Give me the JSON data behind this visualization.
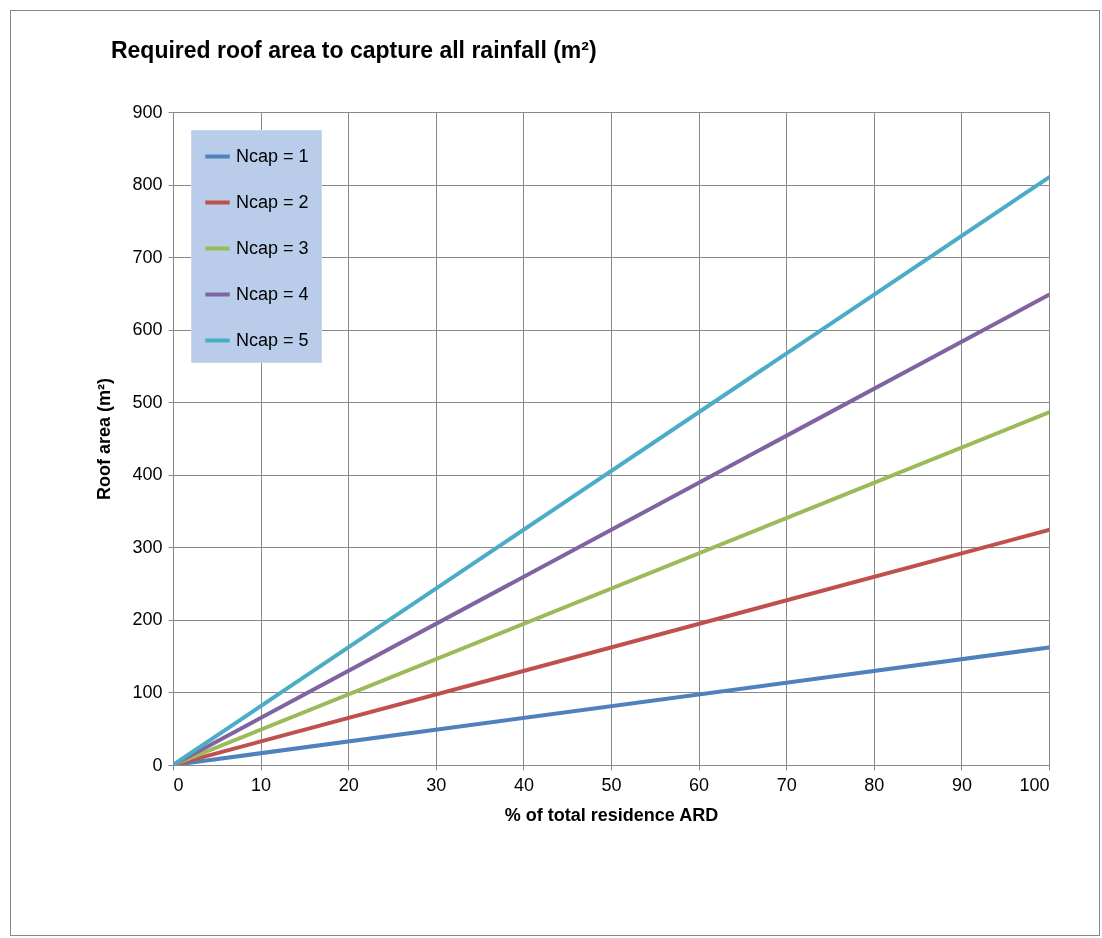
{
  "chart_data": {
    "type": "line",
    "title": "Required roof area to capture all rainfall (m²)",
    "xlabel": "% of total residence ARD",
    "ylabel": "Roof area (m²)",
    "x": [
      0,
      100
    ],
    "series": [
      {
        "name": "Ncap = 1",
        "color": "#4f81bd",
        "values": [
          0,
          162
        ]
      },
      {
        "name": "Ncap = 2",
        "color": "#c0504d",
        "values": [
          0,
          324
        ]
      },
      {
        "name": "Ncap = 3",
        "color": "#9bbb59",
        "values": [
          0,
          486
        ]
      },
      {
        "name": "Ncap = 4",
        "color": "#8064a2",
        "values": [
          0,
          648
        ]
      },
      {
        "name": "Ncap = 5",
        "color": "#4bacc6",
        "values": [
          0,
          810
        ]
      }
    ],
    "xlim": [
      0,
      100
    ],
    "xticks": [
      0,
      10,
      20,
      30,
      40,
      50,
      60,
      70,
      80,
      90,
      100
    ],
    "ylim": [
      0,
      900
    ],
    "yticks": [
      0,
      100,
      200,
      300,
      400,
      500,
      600,
      700,
      800,
      900
    ],
    "grid": true,
    "legend": "top left",
    "marker": "none",
    "line_style": "solid"
  }
}
